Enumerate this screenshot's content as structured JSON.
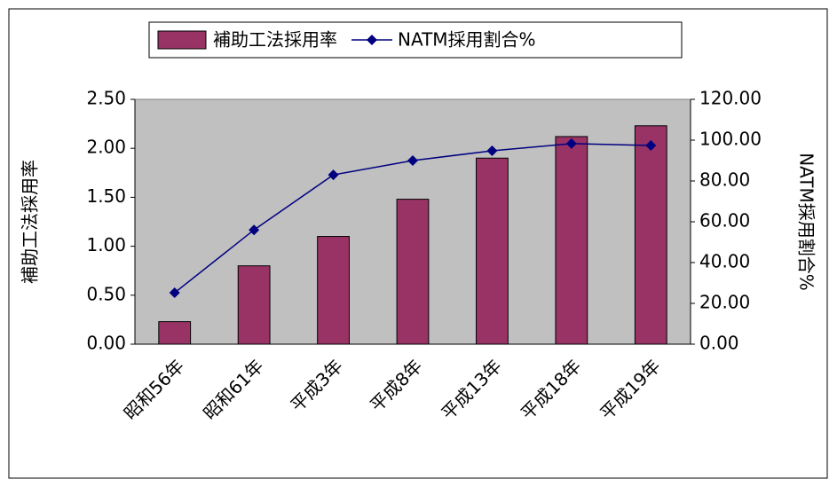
{
  "chart_data": {
    "type": "bar",
    "categories": [
      "昭和56年",
      "昭和61年",
      "平成3年",
      "平成8年",
      "平成13年",
      "平成18年",
      "平成19年"
    ],
    "series": [
      {
        "name": "補助工法採用率",
        "type": "bar",
        "color": "#993366",
        "values": [
          0.23,
          0.8,
          1.1,
          1.48,
          1.9,
          2.12,
          2.23
        ]
      },
      {
        "name": "NATM採用割合%",
        "type": "line",
        "axis": "y2",
        "color": "#000080",
        "values": [
          25.2,
          56,
          83,
          90,
          94.8,
          98.3,
          97.4
        ]
      }
    ],
    "ylabel": "補助工法採用率",
    "y2label": "NATM採用割合%",
    "ylim": [
      0,
      2.5
    ],
    "yticks": [
      {
        "value": 0,
        "label": "0.00"
      },
      {
        "value": 0.5,
        "label": "0.50"
      },
      {
        "value": 1,
        "label": "1.00"
      },
      {
        "value": 1.5,
        "label": "1.50"
      },
      {
        "value": 2,
        "label": "2.00"
      },
      {
        "value": 2.5,
        "label": "2.50"
      }
    ],
    "y2lim": [
      0,
      120
    ],
    "y2ticks": [
      {
        "value": 0,
        "label": "0.00"
      },
      {
        "value": 20,
        "label": "20.00"
      },
      {
        "value": 40,
        "label": "40.00"
      },
      {
        "value": 60,
        "label": "60.00"
      },
      {
        "value": 80,
        "label": "80.00"
      },
      {
        "value": 100,
        "label": "100.00"
      },
      {
        "value": 120,
        "label": "120.00"
      }
    ],
    "grid": false,
    "legend": "top"
  }
}
